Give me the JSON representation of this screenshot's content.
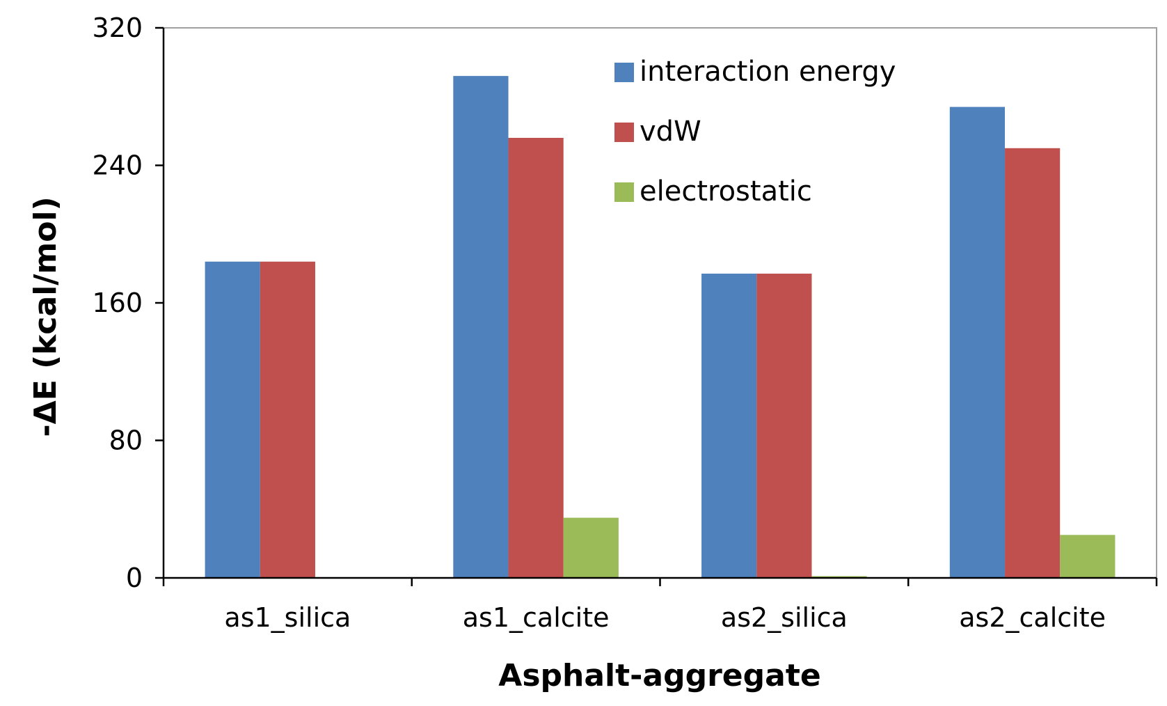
{
  "chart_data": {
    "type": "bar",
    "title": "",
    "xlabel": "Asphalt-aggregate",
    "ylabel": "-ΔE (kcal/mol)",
    "ylim": [
      0,
      320
    ],
    "yticks": [
      "0",
      "80",
      "160",
      "240",
      "320"
    ],
    "ytick_values": [
      0,
      80,
      160,
      240,
      320
    ],
    "categories": [
      "as1_silica",
      "as1_calcite",
      "as2_silica",
      "as2_calcite"
    ],
    "series": [
      {
        "name": "interaction energy",
        "color": "#4f81bd",
        "values": [
          184,
          292,
          177,
          274
        ]
      },
      {
        "name": "vdW",
        "color": "#c0504d",
        "values": [
          184,
          256,
          177,
          250
        ]
      },
      {
        "name": "electrostatic",
        "color": "#9bbb59",
        "values": [
          0,
          35,
          1,
          25
        ]
      }
    ],
    "legend_position": "top-right",
    "grid": false
  }
}
